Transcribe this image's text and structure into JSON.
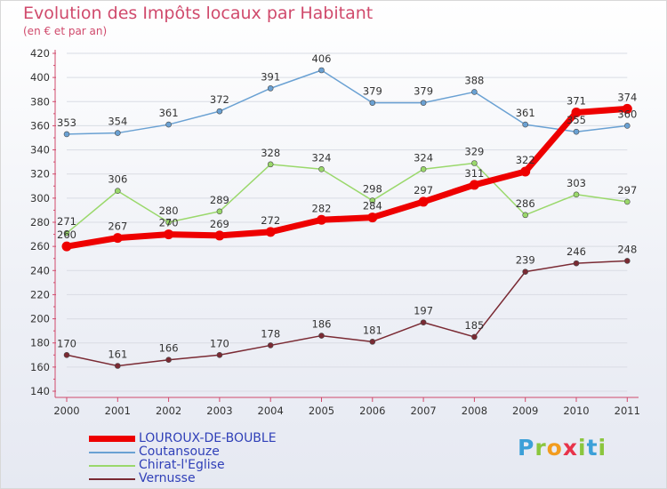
{
  "header": {
    "title": "Evolution des Impôts locaux par Habitant",
    "subtitle": "(en € et par an)"
  },
  "logo": {
    "text": "Proxiti"
  },
  "colors": {
    "title": "#d04a6c",
    "axis": "#d04a6c",
    "grid": "#d9dce4",
    "label": "#333333",
    "legend_text": "#3040b8",
    "logo_p": "#3ca0d8",
    "logo_r": "#8bc63e",
    "logo_o": "#f29c1f",
    "logo_x": "#e8334a",
    "logo_i": "#8bc63e",
    "logo_t": "#3ca0d8"
  },
  "chart_data": {
    "type": "line",
    "title": "Evolution des Impôts locaux par Habitant",
    "subtitle": "(en € et par an)",
    "xlabel": "",
    "ylabel": "",
    "categories": [
      "2000",
      "2001",
      "2002",
      "2003",
      "2004",
      "2005",
      "2006",
      "2007",
      "2008",
      "2009",
      "2010",
      "2011"
    ],
    "ylim": [
      140,
      420
    ],
    "yticks": [
      140,
      160,
      180,
      200,
      220,
      240,
      260,
      280,
      300,
      320,
      340,
      360,
      380,
      400,
      420
    ],
    "grid": true,
    "legend_position": "bottom-left",
    "series": [
      {
        "name": "LOUROUX-DE-BOUBLE",
        "color": "#ee0000",
        "width": 7,
        "values": [
          260,
          267,
          270,
          269,
          272,
          282,
          284,
          297,
          311,
          322,
          371,
          374
        ]
      },
      {
        "name": "Coutansouze",
        "color": "#6aa1d3",
        "width": 1.5,
        "values": [
          353,
          354,
          361,
          372,
          391,
          406,
          379,
          379,
          388,
          361,
          355,
          360
        ]
      },
      {
        "name": "Chirat-l'Eglise",
        "color": "#9ad86b",
        "width": 1.5,
        "values": [
          271,
          306,
          280,
          289,
          328,
          324,
          298,
          324,
          329,
          286,
          303,
          297
        ]
      },
      {
        "name": "Vernusse",
        "color": "#7a2a33",
        "width": 1.5,
        "values": [
          170,
          161,
          166,
          170,
          178,
          186,
          181,
          197,
          185,
          239,
          246,
          248
        ]
      }
    ]
  }
}
